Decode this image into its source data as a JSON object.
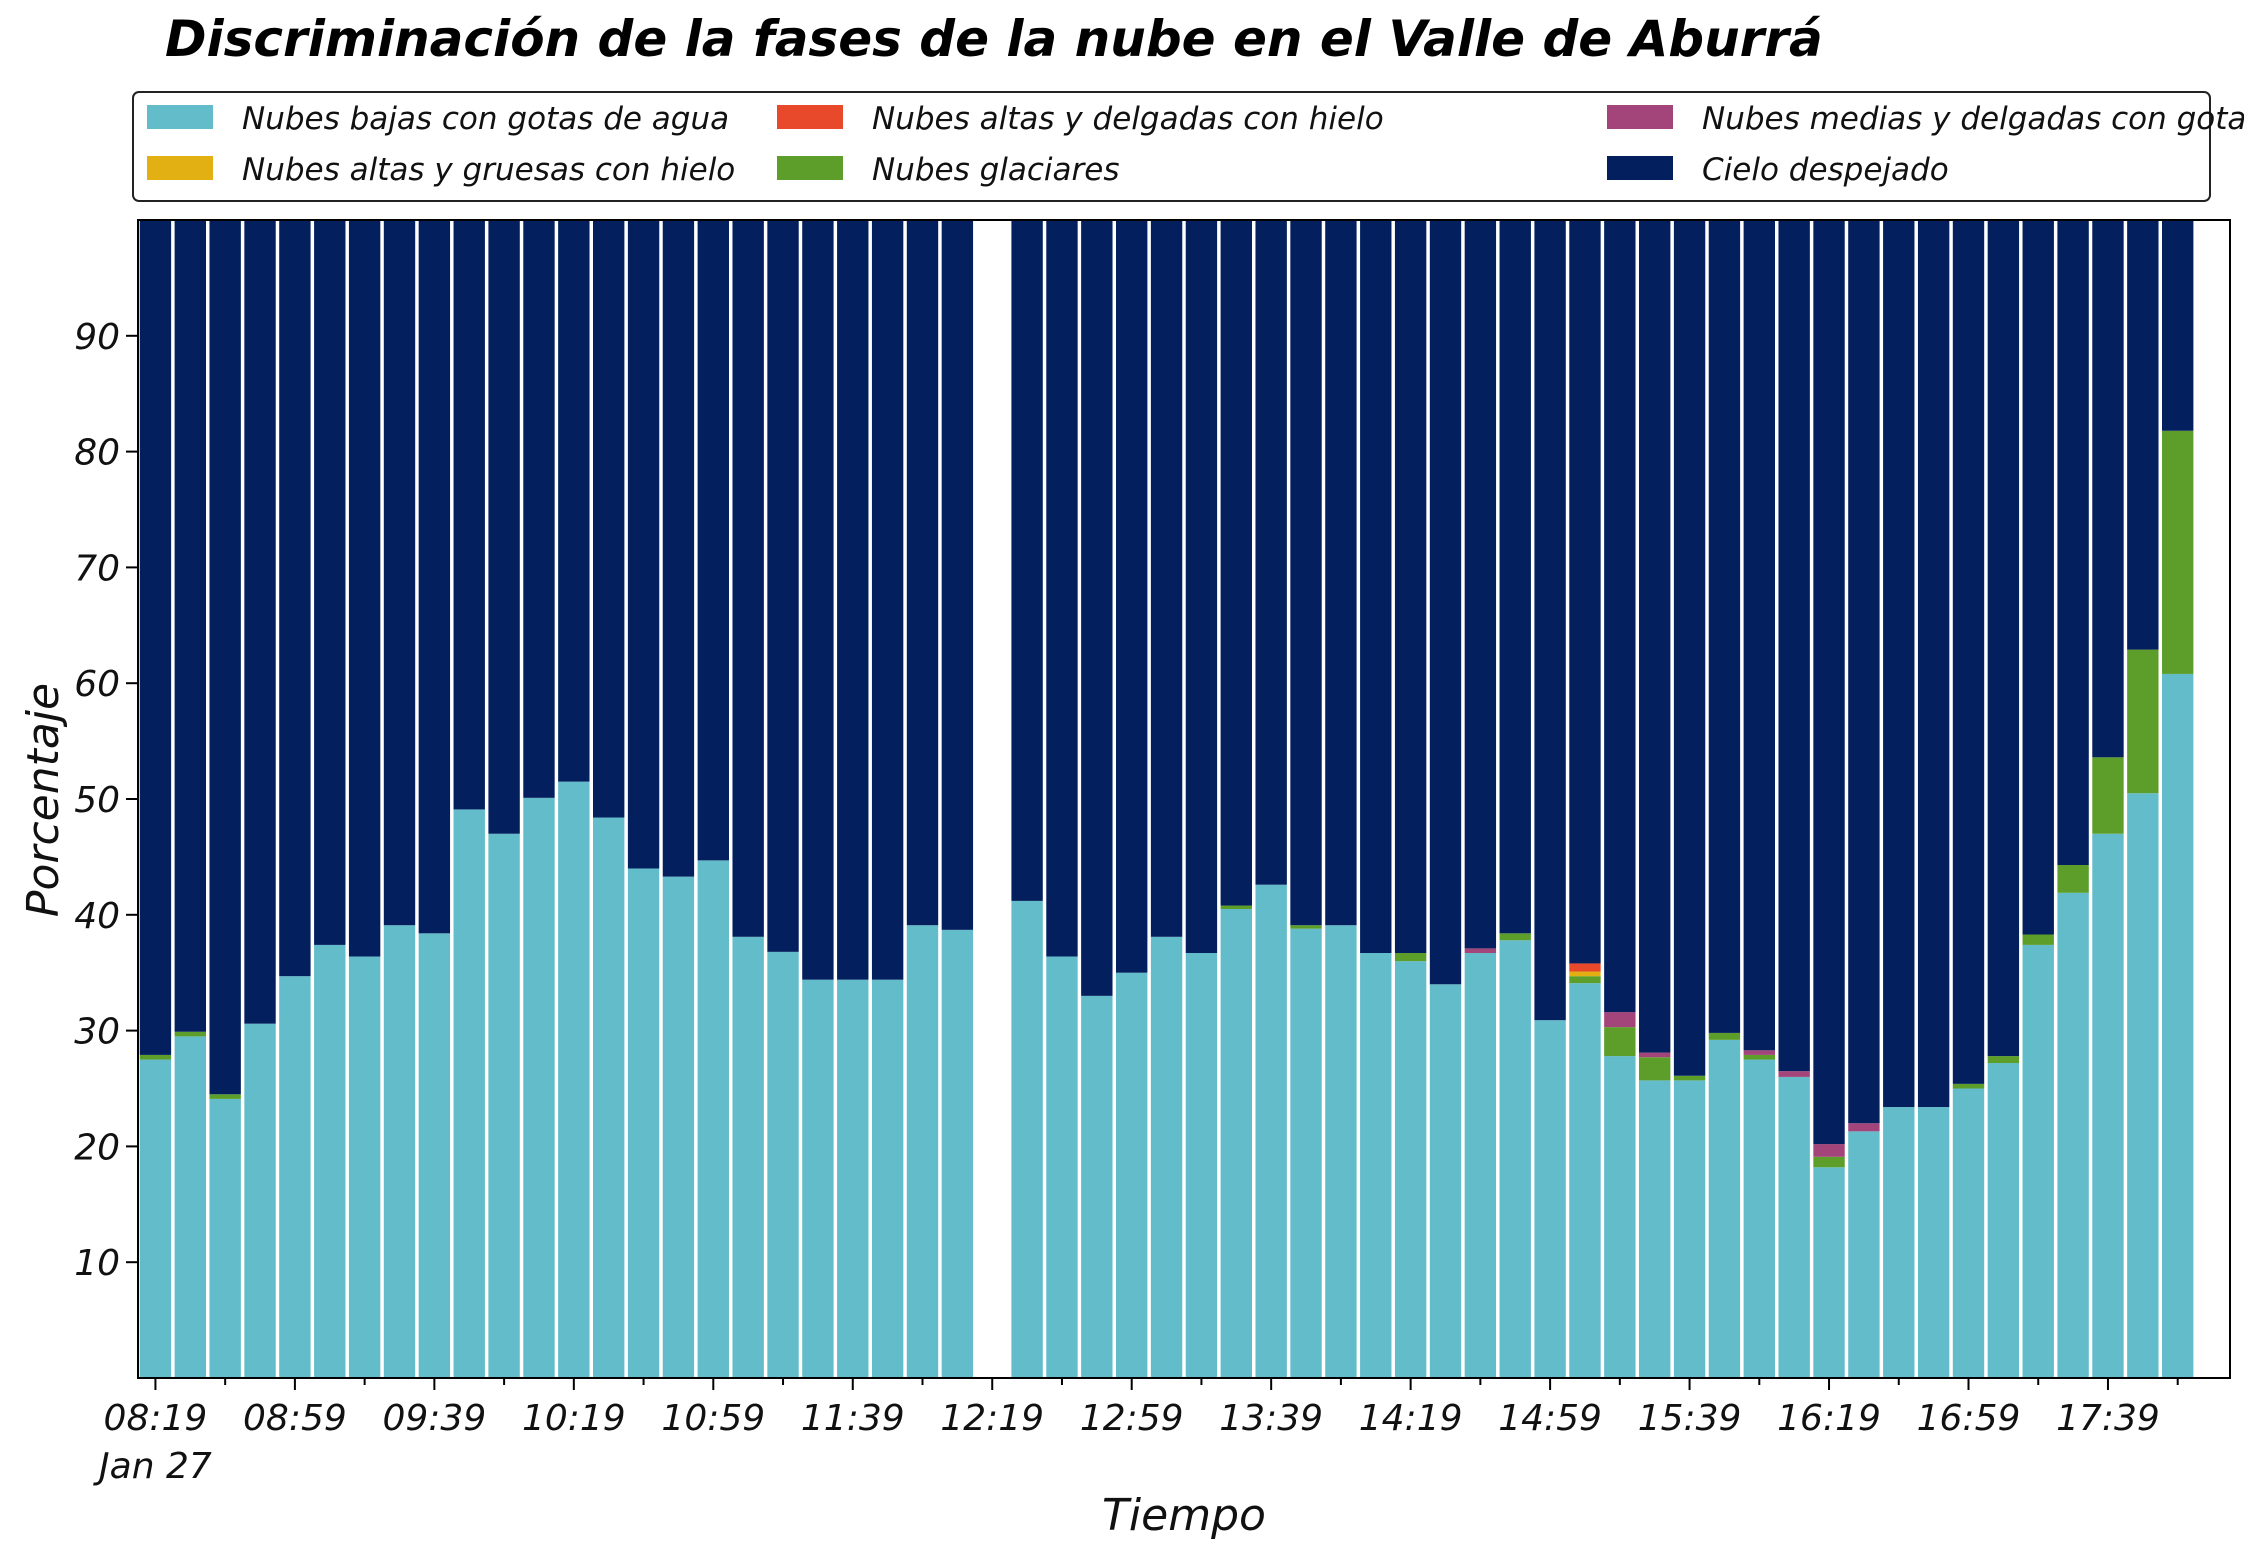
{
  "chart_data": {
    "type": "bar",
    "stacked": true,
    "title": "Discriminación de la fases de la nube en el Valle de Aburrá",
    "xlabel": "Tiempo",
    "ylabel": "Porcentaje",
    "ylim": [
      0,
      100
    ],
    "yticks": [
      10,
      20,
      30,
      40,
      50,
      60,
      70,
      80,
      90
    ],
    "grid": false,
    "legend_position": "top",
    "x_start_minutes": 499,
    "interval_minutes": 10,
    "x_end_minutes": 1089,
    "xticks": [
      {
        "minutes": 499,
        "label": "08:19",
        "sublabel": "Jan 27"
      },
      {
        "minutes": 539,
        "label": "08:59"
      },
      {
        "minutes": 579,
        "label": "09:39"
      },
      {
        "minutes": 619,
        "label": "10:19"
      },
      {
        "minutes": 659,
        "label": "10:59"
      },
      {
        "minutes": 699,
        "label": "11:39"
      },
      {
        "minutes": 739,
        "label": "12:19"
      },
      {
        "minutes": 779,
        "label": "12:59"
      },
      {
        "minutes": 819,
        "label": "13:39"
      },
      {
        "minutes": 859,
        "label": "14:19"
      },
      {
        "minutes": 899,
        "label": "14:59"
      },
      {
        "minutes": 939,
        "label": "15:39"
      },
      {
        "minutes": 979,
        "label": "16:19"
      },
      {
        "minutes": 1019,
        "label": "16:59"
      },
      {
        "minutes": 1059,
        "label": "17:39"
      }
    ],
    "legend_order": [
      0,
      2,
      4,
      1,
      3,
      5
    ],
    "series": [
      {
        "name": "Nubes bajas con gotas de agua",
        "color": "#63bcc9"
      },
      {
        "name": "Nubes glaciares",
        "color": "#5d9e2b"
      },
      {
        "name": "Nubes altas y gruesas con hielo",
        "color": "#e3b014"
      },
      {
        "name": "Nubes medias y delgadas con gotas de agua",
        "color": "#a3457a"
      },
      {
        "name": "Nubes altas y delgadas con hielo",
        "color": "#e8492a"
      },
      {
        "name": "Cielo despejado",
        "color": "#041f5e"
      }
    ],
    "bars": [
      {
        "time": "08:19",
        "values": [
          27.5,
          0.4,
          0,
          0,
          0,
          72.1
        ]
      },
      {
        "time": "08:29",
        "values": [
          29.5,
          0.4,
          0,
          0,
          0,
          70.1
        ]
      },
      {
        "time": "08:39",
        "values": [
          24.1,
          0.4,
          0,
          0,
          0,
          75.5
        ]
      },
      {
        "time": "08:49",
        "values": [
          30.6,
          0,
          0,
          0,
          0,
          69.4
        ]
      },
      {
        "time": "08:59",
        "values": [
          34.7,
          0,
          0,
          0,
          0,
          65.3
        ]
      },
      {
        "time": "09:09",
        "values": [
          37.4,
          0,
          0,
          0,
          0,
          62.6
        ]
      },
      {
        "time": "09:19",
        "values": [
          36.4,
          0,
          0,
          0,
          0,
          63.6
        ]
      },
      {
        "time": "09:29",
        "values": [
          39.1,
          0,
          0,
          0,
          0,
          60.9
        ]
      },
      {
        "time": "09:39",
        "values": [
          38.4,
          0,
          0,
          0,
          0,
          61.6
        ]
      },
      {
        "time": "09:49",
        "values": [
          49.1,
          0,
          0,
          0,
          0,
          50.9
        ]
      },
      {
        "time": "09:59",
        "values": [
          47.0,
          0,
          0,
          0,
          0,
          53.0
        ]
      },
      {
        "time": "10:09",
        "values": [
          50.1,
          0,
          0,
          0,
          0,
          49.9
        ]
      },
      {
        "time": "10:19",
        "values": [
          51.5,
          0,
          0,
          0,
          0,
          48.5
        ]
      },
      {
        "time": "10:29",
        "values": [
          48.4,
          0,
          0,
          0,
          0,
          51.6
        ]
      },
      {
        "time": "10:39",
        "values": [
          44.0,
          0,
          0,
          0,
          0,
          56.0
        ]
      },
      {
        "time": "10:49",
        "values": [
          43.3,
          0,
          0,
          0,
          0,
          56.7
        ]
      },
      {
        "time": "10:59",
        "values": [
          44.7,
          0,
          0,
          0,
          0,
          55.3
        ]
      },
      {
        "time": "11:09",
        "values": [
          38.1,
          0,
          0,
          0,
          0,
          61.9
        ]
      },
      {
        "time": "11:19",
        "values": [
          36.8,
          0,
          0,
          0,
          0,
          63.2
        ]
      },
      {
        "time": "11:29",
        "values": [
          34.4,
          0,
          0,
          0,
          0,
          65.6
        ]
      },
      {
        "time": "11:39",
        "values": [
          34.4,
          0,
          0,
          0,
          0,
          65.6
        ]
      },
      {
        "time": "11:49",
        "values": [
          34.4,
          0,
          0,
          0,
          0,
          65.6
        ]
      },
      {
        "time": "11:59",
        "values": [
          39.1,
          0,
          0,
          0,
          0,
          60.9
        ]
      },
      {
        "time": "12:09",
        "values": [
          38.7,
          0,
          0,
          0,
          0,
          61.3
        ]
      },
      {
        "time": "12:29",
        "values": [
          41.2,
          0,
          0,
          0,
          0,
          58.8
        ]
      },
      {
        "time": "12:39",
        "values": [
          36.4,
          0,
          0,
          0,
          0,
          63.6
        ]
      },
      {
        "time": "12:49",
        "values": [
          33.0,
          0,
          0,
          0,
          0,
          67.0
        ]
      },
      {
        "time": "12:59",
        "values": [
          35.0,
          0,
          0,
          0,
          0,
          65.0
        ]
      },
      {
        "time": "13:09",
        "values": [
          38.1,
          0,
          0,
          0,
          0,
          61.9
        ]
      },
      {
        "time": "13:19",
        "values": [
          36.7,
          0,
          0,
          0,
          0,
          63.3
        ]
      },
      {
        "time": "13:29",
        "values": [
          40.5,
          0.3,
          0,
          0,
          0,
          59.2
        ]
      },
      {
        "time": "13:39",
        "values": [
          42.6,
          0,
          0,
          0,
          0,
          57.4
        ]
      },
      {
        "time": "13:49",
        "values": [
          38.8,
          0.3,
          0,
          0,
          0,
          60.9
        ]
      },
      {
        "time": "13:59",
        "values": [
          39.1,
          0,
          0,
          0,
          0,
          60.9
        ]
      },
      {
        "time": "14:09",
        "values": [
          36.7,
          0,
          0,
          0,
          0,
          63.3
        ]
      },
      {
        "time": "14:19",
        "values": [
          36.0,
          0.7,
          0,
          0,
          0,
          63.3
        ]
      },
      {
        "time": "14:29",
        "values": [
          34.0,
          0,
          0,
          0,
          0,
          66.0
        ]
      },
      {
        "time": "14:39",
        "values": [
          36.7,
          0,
          0,
          0.4,
          0,
          62.9
        ]
      },
      {
        "time": "14:49",
        "values": [
          37.8,
          0.6,
          0,
          0,
          0,
          61.6
        ]
      },
      {
        "time": "14:59",
        "values": [
          30.9,
          0,
          0,
          0,
          0,
          69.1
        ]
      },
      {
        "time": "15:09",
        "values": [
          34.1,
          0.6,
          0.4,
          0,
          0.7,
          64.2
        ]
      },
      {
        "time": "15:19",
        "values": [
          27.8,
          2.5,
          0,
          1.3,
          0,
          68.4
        ]
      },
      {
        "time": "15:29",
        "values": [
          25.7,
          2.0,
          0,
          0.4,
          0,
          71.9
        ]
      },
      {
        "time": "15:39",
        "values": [
          25.7,
          0.4,
          0,
          0,
          0,
          73.9
        ]
      },
      {
        "time": "15:49",
        "values": [
          29.2,
          0.6,
          0,
          0,
          0,
          70.2
        ]
      },
      {
        "time": "15:59",
        "values": [
          27.5,
          0.4,
          0,
          0.4,
          0,
          71.7
        ]
      },
      {
        "time": "16:09",
        "values": [
          26.0,
          0,
          0,
          0.5,
          0,
          73.5
        ]
      },
      {
        "time": "16:19",
        "values": [
          18.2,
          0.9,
          0,
          1.1,
          0,
          79.8
        ]
      },
      {
        "time": "16:29",
        "values": [
          21.3,
          0,
          0,
          0.7,
          0,
          78.0
        ]
      },
      {
        "time": "16:39",
        "values": [
          23.4,
          0,
          0,
          0,
          0,
          76.6
        ]
      },
      {
        "time": "16:49",
        "values": [
          23.4,
          0,
          0,
          0,
          0,
          76.6
        ]
      },
      {
        "time": "16:59",
        "values": [
          25.0,
          0.4,
          0,
          0,
          0,
          74.6
        ]
      },
      {
        "time": "17:09",
        "values": [
          27.2,
          0.6,
          0,
          0,
          0,
          72.2
        ]
      },
      {
        "time": "17:19",
        "values": [
          37.4,
          0.9,
          0,
          0,
          0,
          61.7
        ]
      },
      {
        "time": "17:29",
        "values": [
          41.9,
          2.4,
          0,
          0,
          0,
          55.7
        ]
      },
      {
        "time": "17:39",
        "values": [
          47.0,
          6.6,
          0,
          0,
          0,
          46.4
        ]
      },
      {
        "time": "17:49",
        "values": [
          50.5,
          12.4,
          0,
          0,
          0,
          37.1
        ]
      },
      {
        "time": "17:59",
        "values": [
          60.8,
          21.0,
          0,
          0,
          0,
          18.2
        ]
      }
    ]
  }
}
